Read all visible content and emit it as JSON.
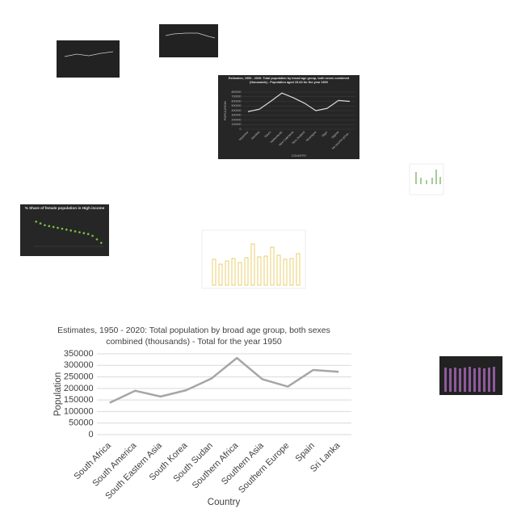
{
  "chart_data": [
    {
      "type": "line",
      "title": "Estimates, 1950 - 2020: Total population by broad age group, both sexes combined (thousands) - Total for the year 1950",
      "y_label": "Population",
      "x_label": "Country",
      "categories": [
        "South Africa",
        "South America",
        "South Eastern Asia",
        "South Korea",
        "South Sudan",
        "Southern Africa",
        "Southern Asia",
        "Southern Europe",
        "Spain",
        "Sri Lanka"
      ],
      "values": [
        138000,
        190000,
        165000,
        192000,
        243000,
        332000,
        240000,
        208000,
        280000,
        272000
      ],
      "color": "#a6a6a6",
      "ylim": [
        0,
        350000
      ],
      "yticks": [
        0,
        50000,
        100000,
        150000,
        200000,
        250000,
        300000,
        350000
      ],
      "grid": true
    },
    {
      "type": "line",
      "title": "Estimates, 1950 - 2020: Total population by broad age group, both sexes combined (thousands) - Population aged 15-64 for the year 1960",
      "y_label": "POPULATION",
      "x_label": "COUNTRY",
      "categories": [
        "Myanmar",
        "Namibia",
        "Nauru",
        "Netherlands",
        "New Caledonia",
        "New Zealand",
        "Nicaragua",
        "Niger",
        "Nigeria",
        "No income group..."
      ],
      "values": [
        380000,
        430000,
        600000,
        780000,
        680000,
        560000,
        400000,
        450000,
        620000,
        600000
      ],
      "color": "#d9d9d9",
      "ylim": [
        0,
        800000
      ],
      "yticks": [
        0,
        100000,
        200000,
        300000,
        400000,
        500000,
        600000,
        700000,
        800000
      ],
      "grid": true
    },
    {
      "type": "dots",
      "title": "% Share of female population in High income",
      "values": [
        52,
        51,
        50,
        49.5,
        49,
        48.5,
        48,
        47.5,
        47,
        46.5,
        46,
        45.5,
        45,
        44,
        42,
        40
      ],
      "color": "#7cc242",
      "ylim": [
        38,
        54
      ]
    }
  ]
}
